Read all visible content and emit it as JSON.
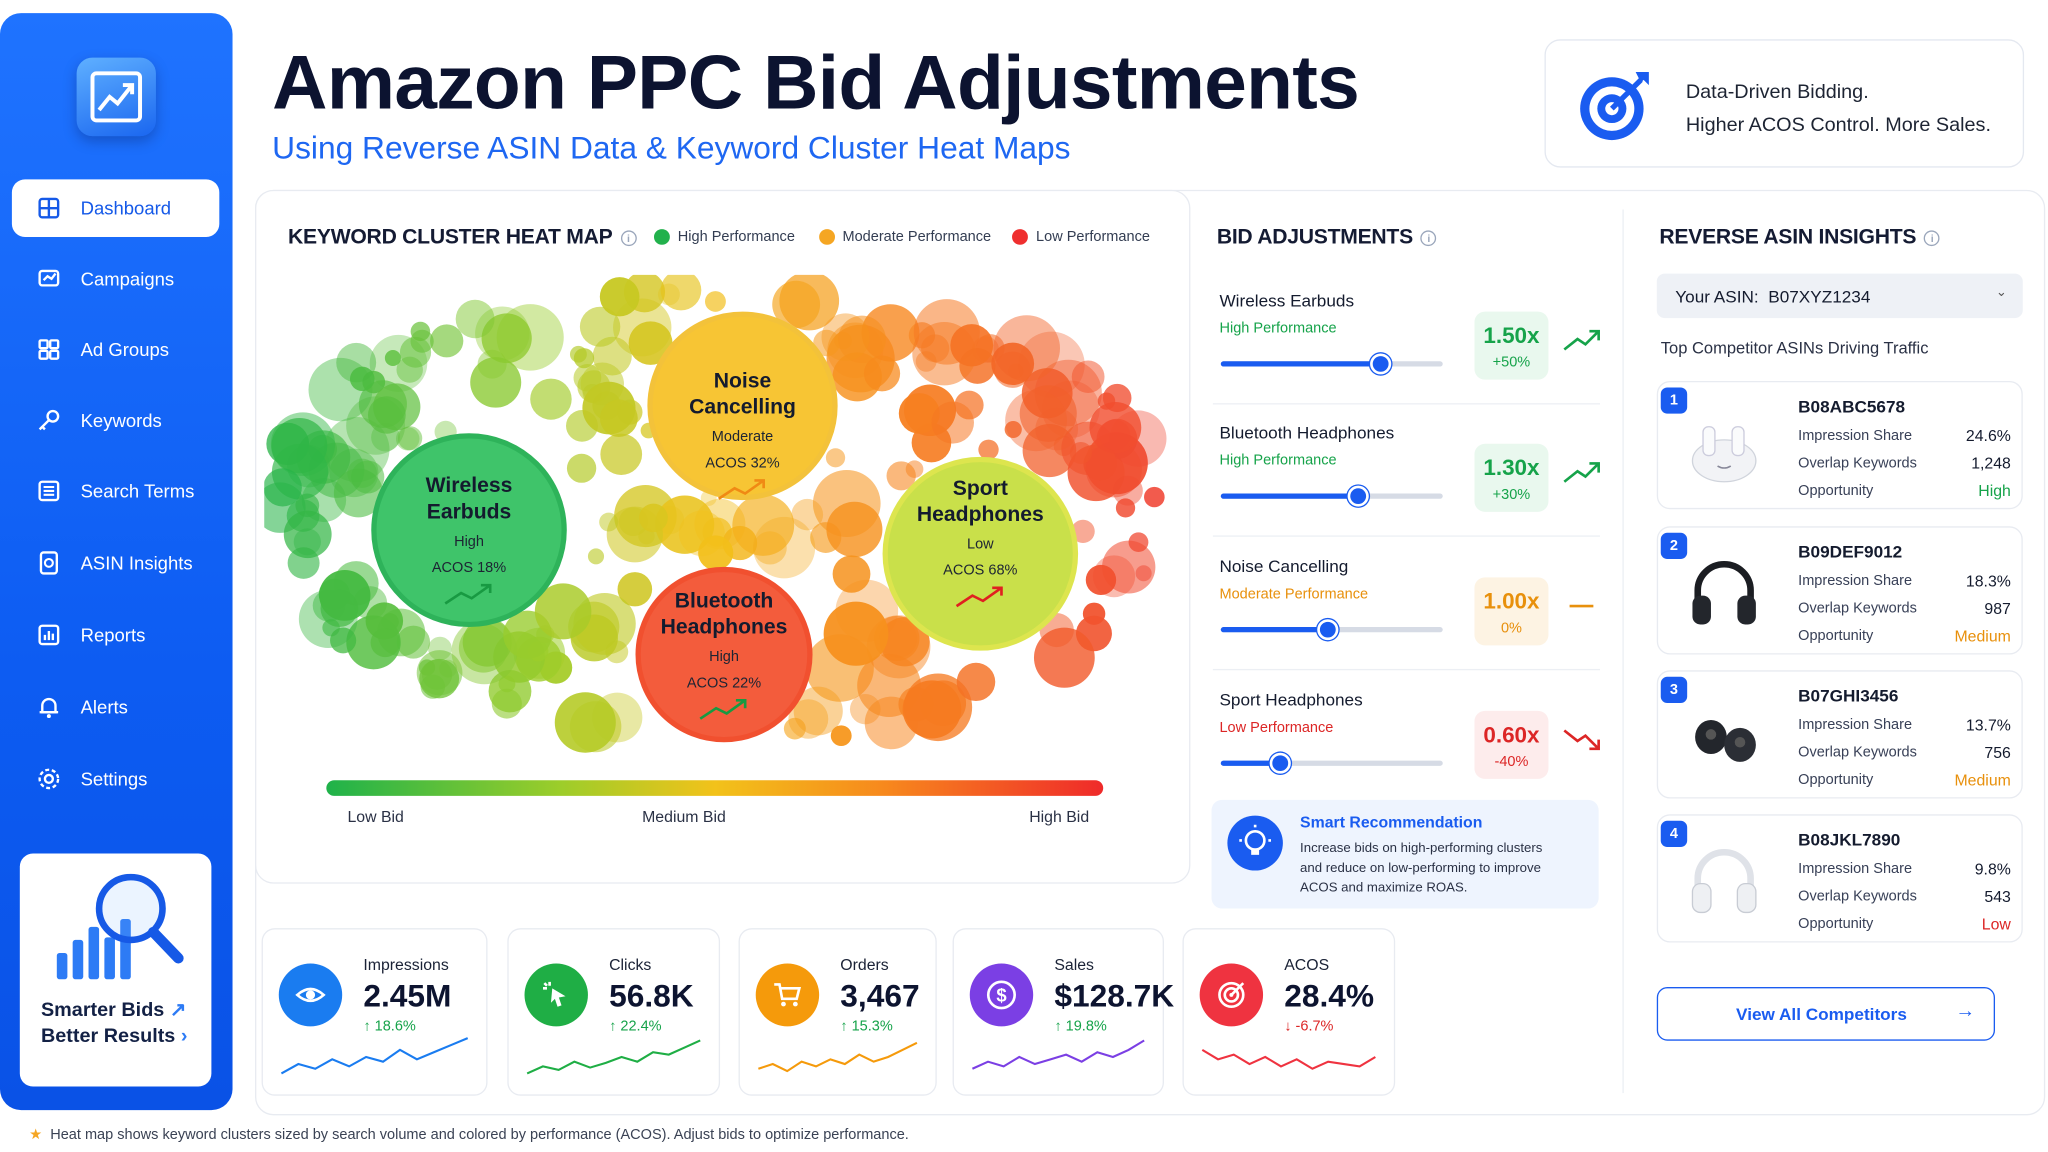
{
  "header": {
    "title": "Amazon PPC Bid Adjustments",
    "subtitle": "Using Reverse ASIN Data & Keyword Cluster Heat Maps"
  },
  "tagline": {
    "line1": "Data-Driven Bidding.",
    "line2": "Higher ACOS Control. More Sales.",
    "icon": "target-arrow-icon"
  },
  "sidebar": {
    "items": [
      {
        "label": "Dashboard",
        "icon": "grid-icon",
        "active": true
      },
      {
        "label": "Campaigns",
        "icon": "campaign-icon"
      },
      {
        "label": "Ad Groups",
        "icon": "ad-groups-icon"
      },
      {
        "label": "Keywords",
        "icon": "key-icon"
      },
      {
        "label": "Search Terms",
        "icon": "list-icon"
      },
      {
        "label": "ASIN Insights",
        "icon": "asin-icon"
      },
      {
        "label": "Reports",
        "icon": "report-icon"
      },
      {
        "label": "Alerts",
        "icon": "bell-icon"
      },
      {
        "label": "Settings",
        "icon": "gear-icon"
      }
    ],
    "promo": {
      "line1": "Smarter Bids",
      "line2": "Better Results"
    }
  },
  "heatmap": {
    "title": "KEYWORD CLUSTER HEAT MAP",
    "legend": [
      {
        "label": "High Performance",
        "color": "#22b14c"
      },
      {
        "label": "Moderate Performance",
        "color": "#f5a623"
      },
      {
        "label": "Low Performance",
        "color": "#ef2f2f"
      }
    ],
    "clusters": [
      {
        "name1": "Wireless",
        "name2": "Earbuds",
        "perf": "High",
        "acos": "ACOS 18%"
      },
      {
        "name1": "Noise",
        "name2": "Cancelling",
        "perf": "Moderate",
        "acos": "ACOS 32%"
      },
      {
        "name1": "Bluetooth",
        "name2": "Headphones",
        "perf": "High",
        "acos": "ACOS 22%"
      },
      {
        "name1": "Sport",
        "name2": "Headphones",
        "perf": "Low",
        "acos": "ACOS 68%"
      }
    ],
    "scale": {
      "low": "Low Bid",
      "mid": "Medium Bid",
      "high": "High Bid"
    }
  },
  "bids": {
    "title": "BID ADJUSTMENTS",
    "items": [
      {
        "name": "Wireless Earbuds",
        "perf": "High Performance",
        "mult": "1.50x",
        "pct": "+50%",
        "level": 0.72,
        "color": "#16a34a",
        "bg": "#e9f8ee",
        "trend": "up"
      },
      {
        "name": "Bluetooth Headphones",
        "perf": "High Performance",
        "mult": "1.30x",
        "pct": "+30%",
        "level": 0.62,
        "color": "#16a34a",
        "bg": "#e9f8ee",
        "trend": "up"
      },
      {
        "name": "Noise Cancelling",
        "perf": "Moderate Performance",
        "mult": "1.00x",
        "pct": "0%",
        "level": 0.48,
        "color": "#e8900c",
        "bg": "#fdf3e3",
        "trend": "flat"
      },
      {
        "name": "Sport Headphones",
        "perf": "Low Performance",
        "mult": "0.60x",
        "pct": "-40%",
        "level": 0.27,
        "color": "#dc2626",
        "bg": "#fdecec",
        "trend": "down"
      }
    ],
    "recommendation": {
      "title": "Smart Recommendation",
      "line1": "Increase bids on high-performing clusters",
      "line2": "and reduce on low-performing to improve",
      "line3": "ACOS and maximize ROAS."
    }
  },
  "asin": {
    "title": "REVERSE ASIN INSIGHTS",
    "your_asin_label": "Your ASIN:",
    "your_asin": "B07XYZ1234",
    "subtitle": "Top Competitor ASINs Driving Traffic",
    "labels": {
      "share": "Impression Share",
      "overlap": "Overlap Keywords",
      "opp": "Opportunity"
    },
    "competitors": [
      {
        "rank": "1",
        "asin": "B08ABC5678",
        "share": "24.6%",
        "overlap": "1,248",
        "opp": "High",
        "opp_color": "#16a34a",
        "product": "white-earbuds"
      },
      {
        "rank": "2",
        "asin": "B09DEF9012",
        "share": "18.3%",
        "overlap": "987",
        "opp": "Medium",
        "opp_color": "#e8900c",
        "product": "black-headphones"
      },
      {
        "rank": "3",
        "asin": "B07GHI3456",
        "share": "13.7%",
        "overlap": "756",
        "opp": "Medium",
        "opp_color": "#e8900c",
        "product": "black-earbuds"
      },
      {
        "rank": "4",
        "asin": "B08JKL7890",
        "share": "9.8%",
        "overlap": "543",
        "opp": "Low",
        "opp_color": "#dc2626",
        "product": "white-headphones"
      }
    ],
    "view_all": "View All Competitors"
  },
  "kpis": [
    {
      "label": "Impressions",
      "value": "2.45M",
      "change": "18.6%",
      "dir": "up",
      "color": "#1a7cf0",
      "icon": "eye-icon"
    },
    {
      "label": "Clicks",
      "value": "56.8K",
      "change": "22.4%",
      "dir": "up",
      "color": "#1fae45",
      "icon": "cursor-click-icon"
    },
    {
      "label": "Orders",
      "value": "3,467",
      "change": "15.3%",
      "dir": "up",
      "color": "#f59a0b",
      "icon": "cart-icon"
    },
    {
      "label": "Sales",
      "value": "$128.7K",
      "change": "19.8%",
      "dir": "up",
      "color": "#7b3fe4",
      "icon": "dollar-icon"
    },
    {
      "label": "ACOS",
      "value": "28.4%",
      "change": "-6.7%",
      "dir": "down",
      "color": "#ef3340",
      "icon": "target-icon"
    }
  ],
  "footer": {
    "note": "Heat map shows keyword clusters sized by search volume and colored by performance (ACOS). Adjust bids to optimize performance."
  }
}
